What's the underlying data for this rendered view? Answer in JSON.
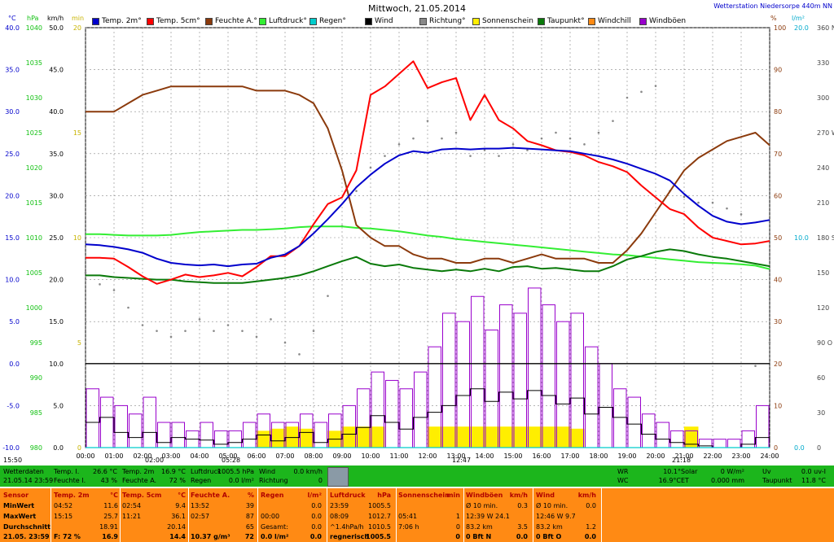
{
  "title": "Mittwoch, 21.05.2014",
  "station": "Wetterstation Niedersorpe 440m NN",
  "unit_labels": {
    "c": "°C",
    "hpa": "hPa",
    "kmh": "km/h",
    "min": "min",
    "pct": "%",
    "lm2": "l/m²"
  },
  "legend": [
    {
      "label": "Temp. 2m°",
      "color": "#0000cc"
    },
    {
      "label": "Temp. 5cm°",
      "color": "#ff0000"
    },
    {
      "label": "Feuchte A.°",
      "color": "#8b3a0c"
    },
    {
      "label": "Luftdruck°",
      "color": "#33ee33"
    },
    {
      "label": "Regen°",
      "color": "#00cccc"
    },
    {
      "label": "Wind",
      "color": "#000000"
    },
    {
      "label": "Richtung°",
      "color": "#888888"
    },
    {
      "label": "Sonnenschein",
      "color": "#ffee00"
    },
    {
      "label": "Taupunkt°",
      "color": "#0a7a0a"
    },
    {
      "label": "Windchill",
      "color": "#ff8a14"
    },
    {
      "label": "Windböen",
      "color": "#9900cc"
    }
  ],
  "axis_ticks": {
    "temp": [
      "40.0",
      "35.0",
      "30.0",
      "25.0",
      "20.0",
      "15.0",
      "10.0",
      "5.0",
      "0.0",
      "-5.0",
      "-10.0"
    ],
    "hpa": [
      "1040",
      "1035",
      "1030",
      "1025",
      "1020",
      "1015",
      "1010",
      "1005",
      "1000",
      "995",
      "990",
      "985",
      "980"
    ],
    "kmh": [
      "50.0",
      "45.0",
      "40.0",
      "35.0",
      "30.0",
      "25.0",
      "20.0",
      "15.0",
      "10.0",
      "5.0",
      "0.0"
    ],
    "min": [
      "20",
      "15",
      "10",
      "5",
      "0"
    ],
    "pct": [
      "100",
      "90",
      "80",
      "70",
      "60",
      "50",
      "40",
      "30",
      "20",
      "10",
      "0"
    ],
    "lm2": [
      "20.0",
      "10.0",
      "0.0"
    ],
    "deg": [
      "360 N",
      "330",
      "300",
      "270 W",
      "240",
      "210",
      "180 S",
      "150",
      "120",
      "90 O",
      "60",
      "30",
      "0"
    ],
    "hours": [
      "00:00",
      "01:00",
      "02:00",
      "03:00",
      "04:00",
      "05:00",
      "06:00",
      "07:00",
      "08:00",
      "09:00",
      "10:00",
      "11:00",
      "12:00",
      "13:00",
      "14:00",
      "15:00",
      "16:00",
      "17:00",
      "18:00",
      "19:00",
      "20:00",
      "21:00",
      "22:00",
      "23:00",
      "24:00"
    ]
  },
  "markers": {
    "left_time": "15:50",
    "sunrise": "02:00",
    "min_time": "05:28",
    "noon": "12:47",
    "sunset": "21:18"
  },
  "chart_data": {
    "type": "line",
    "title": "Mittwoch, 21.05.2014",
    "x_hours": [
      0,
      0.5,
      1,
      1.5,
      2,
      2.5,
      3,
      3.5,
      4,
      4.5,
      5,
      5.5,
      6,
      6.5,
      7,
      7.5,
      8,
      8.5,
      9,
      9.5,
      10,
      10.5,
      11,
      11.5,
      12,
      12.5,
      13,
      13.5,
      14,
      14.5,
      15,
      15.5,
      16,
      16.5,
      17,
      17.5,
      18,
      18.5,
      19,
      19.5,
      20,
      20.5,
      21,
      21.5,
      22,
      22.5,
      23,
      23.5,
      24
    ],
    "xlim": [
      0,
      24
    ],
    "series": [
      {
        "name": "Temp. 2m",
        "axis": "temp",
        "ylim": [
          -10,
          40
        ],
        "values": [
          14.2,
          14.1,
          13.9,
          13.6,
          13.2,
          12.5,
          12.0,
          11.8,
          11.7,
          11.8,
          11.6,
          11.8,
          11.9,
          12.6,
          13.0,
          14.0,
          15.5,
          17.2,
          19.0,
          21.0,
          22.5,
          23.8,
          24.8,
          25.3,
          25.1,
          25.5,
          25.6,
          25.5,
          25.6,
          25.6,
          25.7,
          25.6,
          25.5,
          25.4,
          25.3,
          25.0,
          24.7,
          24.3,
          23.8,
          23.2,
          22.6,
          21.8,
          20.2,
          18.8,
          17.6,
          16.9,
          16.6,
          16.8,
          17.1
        ]
      },
      {
        "name": "Temp. 5cm",
        "axis": "temp",
        "ylim": [
          -10,
          40
        ],
        "values": [
          12.6,
          12.6,
          12.5,
          11.5,
          10.4,
          9.5,
          10.0,
          10.6,
          10.3,
          10.5,
          10.8,
          10.4,
          11.5,
          12.8,
          12.8,
          14.0,
          16.6,
          19.0,
          19.8,
          23.0,
          32.0,
          33.0,
          34.5,
          36.0,
          32.8,
          33.5,
          34.0,
          29.0,
          32.0,
          29.0,
          28.0,
          26.5,
          26.0,
          25.4,
          25.2,
          24.8,
          24.0,
          23.5,
          22.8,
          21.2,
          19.8,
          18.4,
          17.8,
          16.2,
          15.0,
          14.6,
          14.2,
          14.3,
          14.6
        ]
      },
      {
        "name": "Feuchte A.",
        "axis": "pct",
        "ylim": [
          0,
          100
        ],
        "values": [
          80,
          80,
          80,
          82,
          84,
          85,
          86,
          86,
          86,
          86,
          86,
          86,
          85,
          85,
          85,
          84,
          82,
          76,
          66,
          53,
          50,
          48,
          48,
          46,
          45,
          45,
          44,
          44,
          45,
          45,
          44,
          45,
          46,
          45,
          45,
          45,
          44,
          44,
          47,
          51,
          56,
          61,
          66,
          69,
          71,
          73,
          74,
          75,
          72
        ]
      },
      {
        "name": "Luftdruck",
        "axis": "hpa",
        "ylim": [
          980,
          1040
        ],
        "values": [
          1010.5,
          1010.5,
          1010.4,
          1010.3,
          1010.3,
          1010.3,
          1010.4,
          1010.6,
          1010.8,
          1010.9,
          1011.0,
          1011.1,
          1011.1,
          1011.2,
          1011.3,
          1011.5,
          1011.6,
          1011.6,
          1011.6,
          1011.4,
          1011.3,
          1011.1,
          1010.9,
          1010.6,
          1010.3,
          1010.1,
          1009.8,
          1009.6,
          1009.4,
          1009.2,
          1009.0,
          1008.8,
          1008.6,
          1008.4,
          1008.2,
          1008.0,
          1007.8,
          1007.6,
          1007.5,
          1007.3,
          1007.1,
          1006.9,
          1006.7,
          1006.5,
          1006.4,
          1006.3,
          1006.2,
          1006.0,
          1005.5
        ]
      },
      {
        "name": "Taupunkt",
        "axis": "temp",
        "ylim": [
          -10,
          40
        ],
        "values": [
          10.5,
          10.5,
          10.3,
          10.2,
          10.1,
          10.0,
          10.0,
          9.8,
          9.7,
          9.6,
          9.6,
          9.6,
          9.8,
          10.0,
          10.2,
          10.5,
          11.0,
          11.6,
          12.2,
          12.7,
          11.9,
          11.6,
          11.8,
          11.4,
          11.2,
          11.0,
          11.2,
          11.0,
          11.3,
          11.0,
          11.5,
          11.6,
          11.3,
          11.4,
          11.2,
          11.0,
          11.0,
          11.6,
          12.4,
          12.8,
          13.3,
          13.6,
          13.4,
          13.0,
          12.7,
          12.5,
          12.2,
          11.9,
          11.6
        ]
      },
      {
        "name": "Wind",
        "axis": "kmh",
        "ylim": [
          0,
          50
        ],
        "values": [
          3.0,
          3.6,
          1.8,
          1.2,
          1.8,
          0.6,
          1.2,
          1.0,
          0.9,
          0.4,
          0.6,
          1.0,
          1.5,
          0.8,
          1.2,
          1.8,
          0.6,
          1.0,
          1.6,
          2.4,
          3.8,
          3.0,
          2.2,
          3.6,
          4.2,
          5.0,
          6.2,
          7.0,
          5.5,
          6.6,
          5.8,
          6.8,
          6.2,
          5.2,
          5.9,
          4.0,
          4.8,
          3.6,
          2.8,
          1.6,
          1.0,
          0.6,
          0.4,
          0.2,
          0.0,
          0.0,
          0.4,
          1.2,
          0.8
        ]
      },
      {
        "name": "Windböen",
        "axis": "kmh",
        "ylim": [
          0,
          50
        ],
        "values": [
          7,
          6,
          5,
          4,
          6,
          3,
          3,
          2,
          3,
          2,
          2,
          3,
          4,
          3,
          3,
          4,
          3,
          4,
          5,
          7,
          9,
          8,
          7,
          9,
          12,
          16,
          15,
          18,
          14,
          17,
          16,
          19,
          17,
          15,
          16,
          12,
          10,
          7,
          6,
          4,
          3,
          2,
          2,
          1,
          1,
          1,
          2,
          5,
          3
        ]
      },
      {
        "name": "Richtung",
        "axis": "deg",
        "ylim": [
          0,
          360
        ],
        "values": [
          150,
          140,
          135,
          120,
          105,
          100,
          95,
          100,
          110,
          100,
          105,
          100,
          95,
          110,
          90,
          80,
          100,
          130,
          190,
          220,
          240,
          250,
          260,
          265,
          280,
          265,
          270,
          250,
          255,
          250,
          260,
          255,
          265,
          270,
          265,
          260,
          270,
          280,
          300,
          305,
          310,
          220,
          215,
          210,
          210,
          205,
          200,
          70,
          90
        ]
      },
      {
        "name": "Sonnenschein",
        "axis": "min",
        "ylim": [
          0,
          20
        ],
        "values": [
          0,
          0,
          0,
          0,
          0,
          0,
          0,
          0,
          0,
          0,
          0,
          0,
          0.8,
          0.9,
          1.0,
          0.9,
          0,
          0.8,
          1.0,
          1.0,
          1.0,
          0,
          0,
          0,
          1.0,
          1.0,
          1.0,
          1.0,
          1.0,
          1.0,
          1.0,
          1.0,
          1.0,
          1.0,
          0.9,
          0,
          0,
          0,
          0,
          0,
          0,
          0,
          1.0,
          0,
          0,
          0,
          0,
          0,
          0
        ]
      },
      {
        "name": "Regen",
        "axis": "lm2",
        "ylim": [
          0,
          20
        ],
        "values": [
          0,
          0,
          0,
          0,
          0,
          0,
          0,
          0,
          0,
          0,
          0,
          0,
          0,
          0,
          0,
          0,
          0,
          0,
          0,
          0,
          0,
          0,
          0,
          0,
          0,
          0,
          0,
          0,
          0,
          0,
          0,
          0,
          0,
          0,
          0,
          0,
          0,
          0,
          0,
          0,
          0,
          0,
          0,
          0,
          0,
          0,
          0,
          0,
          0
        ]
      }
    ]
  },
  "current": {
    "c1": [
      "Wetterdaten",
      "21.05.14 23:59"
    ],
    "c2": [
      "Temp. I.",
      "Feuchte I."
    ],
    "c2v": [
      "26.6 °C",
      "43 %"
    ],
    "c3": [
      "Temp. 2m",
      "Feuchte A."
    ],
    "c3v": [
      "16.9 °C",
      "72 %"
    ],
    "c4": [
      "Luftdruck",
      "Regen"
    ],
    "c4v": [
      "1005.5 hPa",
      "0.0 l/m²"
    ],
    "c5": [
      "Wind",
      "Richtung"
    ],
    "c5v": [
      "0.0 km/h",
      "0"
    ],
    "c6": [
      "WR",
      "WC"
    ],
    "c6v": [
      "10.1°",
      "16.9°C"
    ],
    "c7": [
      "Solar",
      "ET"
    ],
    "c7v": [
      "0 W/m²",
      "0.000 mm"
    ],
    "c8": [
      "Uv",
      "Taupunkt"
    ],
    "c8v": [
      "0.0 uv-I",
      "11.8 °C"
    ]
  },
  "stats": {
    "rowlabels": [
      "Sensor",
      "MinWert",
      "MaxWert",
      "Durchschnitt",
      "21.05. 23:59"
    ],
    "temp2m": {
      "head": "Temp. 2m",
      "unit": "°C",
      "rows": [
        [
          "04:52",
          "11.6"
        ],
        [
          "15:15",
          "25.7"
        ],
        [
          "",
          "18.91"
        ],
        [
          "F: 72 %",
          "16.9"
        ]
      ]
    },
    "temp5cm": {
      "head": "Temp. 5cm",
      "unit": "°C",
      "rows": [
        [
          "02:54",
          "9.4"
        ],
        [
          "11:21",
          "36.1"
        ],
        [
          "",
          "20.14"
        ],
        [
          "",
          "14.4"
        ]
      ]
    },
    "feuchte": {
      "head": "Feuchte A.",
      "unit": "%",
      "rows": [
        [
          "13:52",
          "39"
        ],
        [
          "02:57",
          "87"
        ],
        [
          "",
          "65"
        ],
        [
          "10.37 g/m³",
          "72"
        ]
      ]
    },
    "regen": {
      "head": "Regen",
      "unit": "l/m²",
      "rows": [
        [
          "",
          "0.0"
        ],
        [
          "00:00",
          "0.0"
        ],
        [
          "Gesamt:",
          "0.0"
        ],
        [
          "0.0 l/m²",
          "0.0"
        ]
      ]
    },
    "luftdruck": {
      "head": "Luftdruck",
      "unit": "hPa",
      "rows": [
        [
          "23:59",
          "1005.5"
        ],
        [
          "08:09",
          "1012.7"
        ],
        [
          "^1.4hPa/h",
          "1010.5"
        ],
        [
          "regnerisch",
          "1005.5"
        ]
      ]
    },
    "sonne": {
      "head": "Sonnenschein",
      "unit": "min",
      "rows": [
        [
          "",
          ""
        ],
        [
          "05:41",
          "1"
        ],
        [
          "7:06 h",
          "0"
        ],
        [
          "",
          "0"
        ]
      ]
    },
    "boeen": {
      "head": "Windböen",
      "unit": "km/h",
      "rows": [
        [
          "Ø 10 min.",
          "0.3"
        ],
        [
          "12:39   W 24.1",
          ""
        ],
        [
          "83.2 km",
          "3.5"
        ],
        [
          "0 Bft N",
          "0.0"
        ]
      ]
    },
    "wind": {
      "head": "Wind",
      "unit": "km/h",
      "rows": [
        [
          "Ø 10 min.",
          "0.0"
        ],
        [
          "12:46   W 9.7",
          ""
        ],
        [
          "83.2 km",
          "1.2"
        ],
        [
          "0 Bft O",
          "0.0"
        ]
      ]
    }
  },
  "colors": {
    "current_bar": "#1cb61c",
    "stats_bar": "#ff8a14",
    "plot_bg": "#ffffff"
  }
}
